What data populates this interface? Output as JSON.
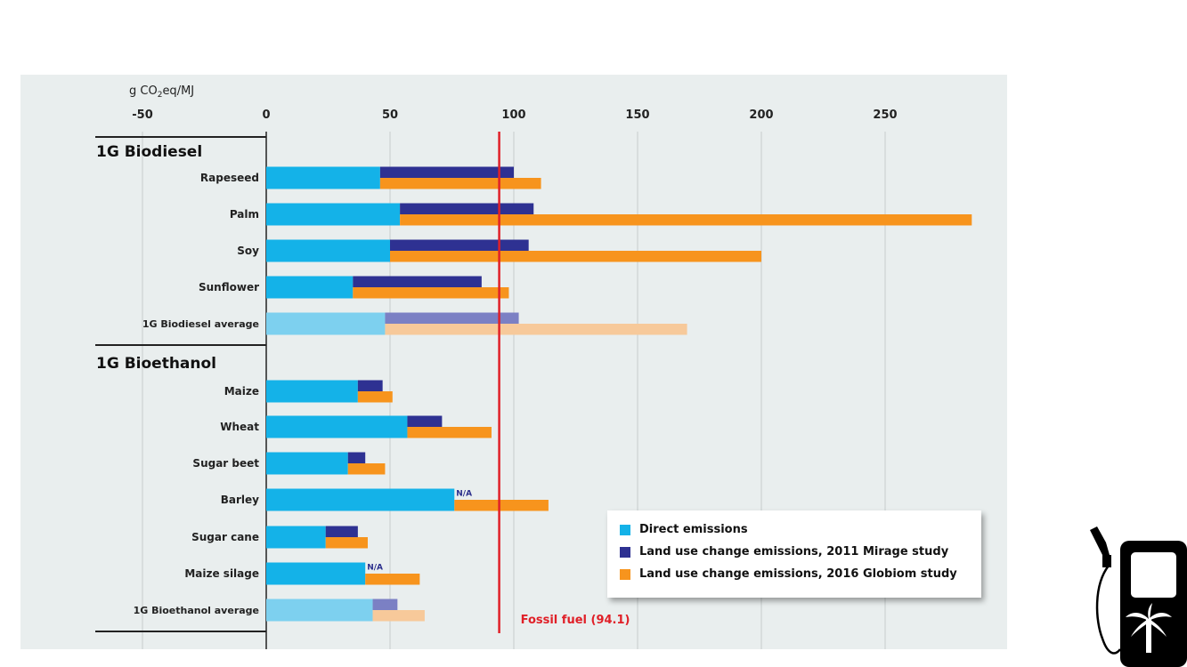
{
  "chart_data": {
    "type": "bar",
    "orientation": "horizontal",
    "xlabel_parts": {
      "pre": "g CO",
      "sub": "2",
      "post": "eq/MJ"
    },
    "xlim": [
      -50,
      288
    ],
    "xticks": [
      -50,
      0,
      50,
      100,
      150,
      200,
      250
    ],
    "grid": true,
    "legend_placement": "bottom-right",
    "groups": [
      {
        "title": "1G Biodiesel",
        "categories": [
          {
            "label": "Rapeseed",
            "direct": 46,
            "mirage": 100,
            "globiom": 111,
            "average": false
          },
          {
            "label": "Palm",
            "direct": 54,
            "mirage": 108,
            "globiom": 285,
            "average": false
          },
          {
            "label": "Soy",
            "direct": 50,
            "mirage": 106,
            "globiom": 200,
            "average": false
          },
          {
            "label": "Sunflower",
            "direct": 35,
            "mirage": 87,
            "globiom": 98,
            "average": false
          },
          {
            "label": "1G Biodiesel average",
            "direct": 48,
            "mirage": 102,
            "globiom": 170,
            "average": true
          }
        ]
      },
      {
        "title": "1G Bioethanol",
        "categories": [
          {
            "label": "Maize",
            "direct": 37,
            "mirage": 47,
            "globiom": 51,
            "average": false
          },
          {
            "label": "Wheat",
            "direct": 57,
            "mirage": 71,
            "globiom": 91,
            "average": false
          },
          {
            "label": "Sugar beet",
            "direct": 33,
            "mirage": 40,
            "globiom": 48,
            "average": false
          },
          {
            "label": "Barley",
            "direct": 76,
            "mirage": null,
            "globiom": 114,
            "average": false,
            "mirage_label": "N/A"
          },
          {
            "label": "Sugar cane",
            "direct": 24,
            "mirage": 37,
            "globiom": 41,
            "average": false
          },
          {
            "label": "Maize silage",
            "direct": 40,
            "mirage": null,
            "globiom": 62,
            "average": false,
            "mirage_label": "N/A"
          },
          {
            "label": "1G Bioethanol average",
            "direct": 43,
            "mirage": 53,
            "globiom": 64,
            "average": true
          }
        ]
      }
    ],
    "series": [
      {
        "key": "direct",
        "name": "Direct emissions",
        "color": "#14b2e8",
        "avg_color": "#7dd0ef"
      },
      {
        "key": "mirage",
        "name": "Land use change emissions, 2011 Mirage study",
        "color": "#2e3192",
        "avg_color": "#7b80c4"
      },
      {
        "key": "globiom",
        "name": "Land use change emissions, 2016 Globiom study",
        "color": "#f7941d",
        "avg_color": "#f7c99a"
      }
    ],
    "reference_line": {
      "value": 94.1,
      "label": "Fossil fuel (94.1)",
      "color": "#e02028"
    }
  },
  "icon": "fuel-pump-palm-icon"
}
